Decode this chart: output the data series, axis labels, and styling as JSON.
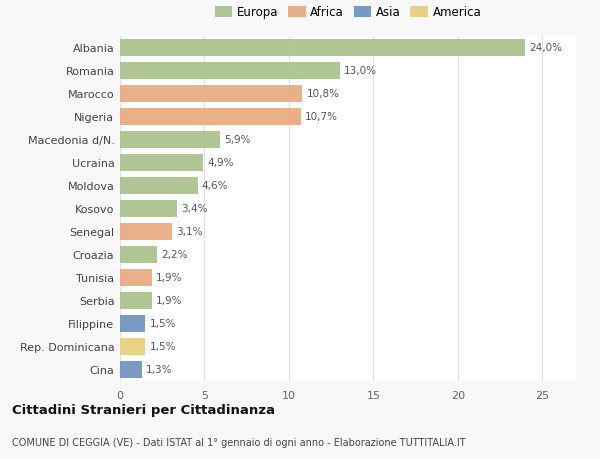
{
  "countries": [
    "Albania",
    "Romania",
    "Marocco",
    "Nigeria",
    "Macedonia d/N.",
    "Ucraina",
    "Moldova",
    "Kosovo",
    "Senegal",
    "Croazia",
    "Tunisia",
    "Serbia",
    "Filippine",
    "Rep. Dominicana",
    "Cina"
  ],
  "values": [
    24.0,
    13.0,
    10.8,
    10.7,
    5.9,
    4.9,
    4.6,
    3.4,
    3.1,
    2.2,
    1.9,
    1.9,
    1.5,
    1.5,
    1.3
  ],
  "labels": [
    "24,0%",
    "13,0%",
    "10,8%",
    "10,7%",
    "5,9%",
    "4,9%",
    "4,6%",
    "3,4%",
    "3,1%",
    "2,2%",
    "1,9%",
    "1,9%",
    "1,5%",
    "1,5%",
    "1,3%"
  ],
  "continents": [
    "Europa",
    "Europa",
    "Africa",
    "Africa",
    "Europa",
    "Europa",
    "Europa",
    "Europa",
    "Africa",
    "Europa",
    "Africa",
    "Europa",
    "Asia",
    "America",
    "Asia"
  ],
  "colors": {
    "Europa": "#a8c08a",
    "Africa": "#e8a87c",
    "Asia": "#6b8fbf",
    "America": "#e8cc7a"
  },
  "legend_order": [
    "Europa",
    "Africa",
    "Asia",
    "America"
  ],
  "xlim": [
    0,
    27
  ],
  "xticks": [
    0,
    5,
    10,
    15,
    20,
    25
  ],
  "title": "Cittadini Stranieri per Cittadinanza",
  "subtitle": "COMUNE DI CEGGIA (VE) - Dati ISTAT al 1° gennaio di ogni anno - Elaborazione TUTTITALIA.IT",
  "bg_color": "#f8f8f8",
  "plot_bg_color": "#ffffff",
  "grid_color": "#e0e0e0",
  "bar_height": 0.72
}
